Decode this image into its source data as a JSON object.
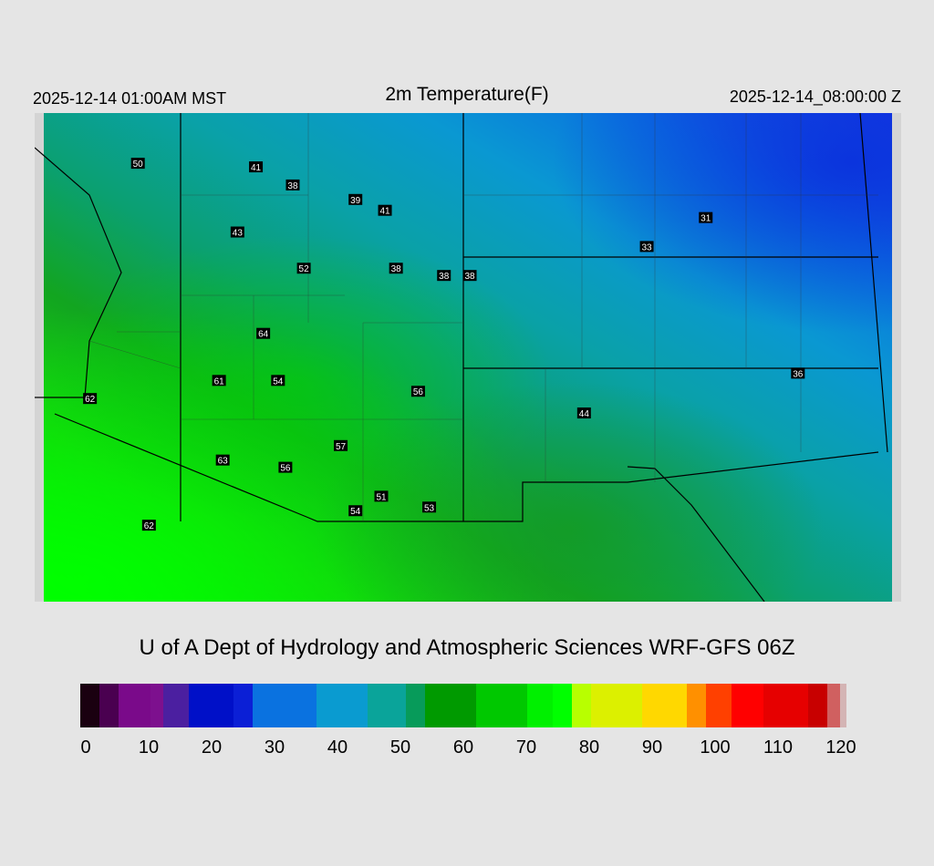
{
  "header": {
    "local_time": "2025-12-14 01:00AM MST",
    "title": "2m Temperature(F)",
    "valid_time": "2025-12-14_08:00:00 Z"
  },
  "credit": "U of A Dept of Hydrology and Atmospheric Sciences WRF-GFS 06Z",
  "colorbar": {
    "min": 0,
    "max": 120,
    "tick_labels": [
      "0",
      "10",
      "20",
      "30",
      "40",
      "50",
      "60",
      "70",
      "80",
      "90",
      "100",
      "110",
      "120"
    ],
    "stops": [
      {
        "v": 0,
        "color": "#1a0010"
      },
      {
        "v": 3,
        "color": "#4a0050"
      },
      {
        "v": 6,
        "color": "#7a0a8a"
      },
      {
        "v": 11,
        "color": "#7d108e"
      },
      {
        "v": 13,
        "color": "#4b1fa0"
      },
      {
        "v": 17,
        "color": "#0010c8"
      },
      {
        "v": 24,
        "color": "#0b1fd6"
      },
      {
        "v": 27,
        "color": "#0a72e0"
      },
      {
        "v": 37,
        "color": "#0a9bd0"
      },
      {
        "v": 45,
        "color": "#0aa49a"
      },
      {
        "v": 51,
        "color": "#079b5a"
      },
      {
        "v": 54,
        "color": "#009a00"
      },
      {
        "v": 62,
        "color": "#00c800"
      },
      {
        "v": 70,
        "color": "#00f000"
      },
      {
        "v": 74,
        "color": "#00ff00"
      },
      {
        "v": 77,
        "color": "#b8ff00"
      },
      {
        "v": 80,
        "color": "#dcf000"
      },
      {
        "v": 88,
        "color": "#ffd800"
      },
      {
        "v": 95,
        "color": "#ff9000"
      },
      {
        "v": 98,
        "color": "#ff4000"
      },
      {
        "v": 102,
        "color": "#ff0000"
      },
      {
        "v": 107,
        "color": "#e60000"
      },
      {
        "v": 114,
        "color": "#c80000"
      },
      {
        "v": 117,
        "color": "#d06060"
      },
      {
        "v": 119,
        "color": "#d4b4b4"
      },
      {
        "v": 120,
        "color": "#d4d4d4"
      }
    ]
  },
  "stations": [
    {
      "id": "s1",
      "value": "50",
      "lon": -116.2,
      "lat": 43.6
    },
    {
      "id": "s2",
      "value": "41",
      "lon": -113.0,
      "lat": 43.5
    },
    {
      "id": "s3",
      "value": "38",
      "lon": -112.0,
      "lat": 43.0
    },
    {
      "id": "s4",
      "value": "39",
      "lon": -110.3,
      "lat": 42.6
    },
    {
      "id": "s5",
      "value": "41",
      "lon": -109.5,
      "lat": 42.3
    },
    {
      "id": "s6",
      "value": "43",
      "lon": -113.5,
      "lat": 41.7
    },
    {
      "id": "s7",
      "value": "52",
      "lon": -111.7,
      "lat": 40.7
    },
    {
      "id": "s8",
      "value": "38",
      "lon": -109.2,
      "lat": 40.7
    },
    {
      "id": "s9",
      "value": "38",
      "lon": -107.9,
      "lat": 40.5
    },
    {
      "id": "s10",
      "value": "38",
      "lon": -107.2,
      "lat": 40.5
    },
    {
      "id": "s11",
      "value": "31",
      "lon": -100.8,
      "lat": 42.1
    },
    {
      "id": "s12",
      "value": "33",
      "lon": -102.4,
      "lat": 41.3
    },
    {
      "id": "s13",
      "value": "64",
      "lon": -112.8,
      "lat": 38.9
    },
    {
      "id": "s14",
      "value": "61",
      "lon": -114.0,
      "lat": 37.6
    },
    {
      "id": "s15",
      "value": "54",
      "lon": -112.4,
      "lat": 37.6
    },
    {
      "id": "s16",
      "value": "56",
      "lon": -108.6,
      "lat": 37.3
    },
    {
      "id": "s17",
      "value": "36",
      "lon": -98.3,
      "lat": 37.8
    },
    {
      "id": "s18",
      "value": "62",
      "lon": -117.5,
      "lat": 37.1
    },
    {
      "id": "s19",
      "value": "44",
      "lon": -104.1,
      "lat": 36.7
    },
    {
      "id": "s20",
      "value": "57",
      "lon": -110.7,
      "lat": 35.8
    },
    {
      "id": "s21",
      "value": "63",
      "lon": -113.9,
      "lat": 35.4
    },
    {
      "id": "s22",
      "value": "56",
      "lon": -112.2,
      "lat": 35.2
    },
    {
      "id": "s23",
      "value": "51",
      "lon": -109.6,
      "lat": 34.4
    },
    {
      "id": "s24",
      "value": "53",
      "lon": -108.3,
      "lat": 34.1
    },
    {
      "id": "s25",
      "value": "54",
      "lon": -110.3,
      "lat": 34.0
    },
    {
      "id": "s26",
      "value": "62",
      "lon": -115.9,
      "lat": 33.6
    }
  ]
}
